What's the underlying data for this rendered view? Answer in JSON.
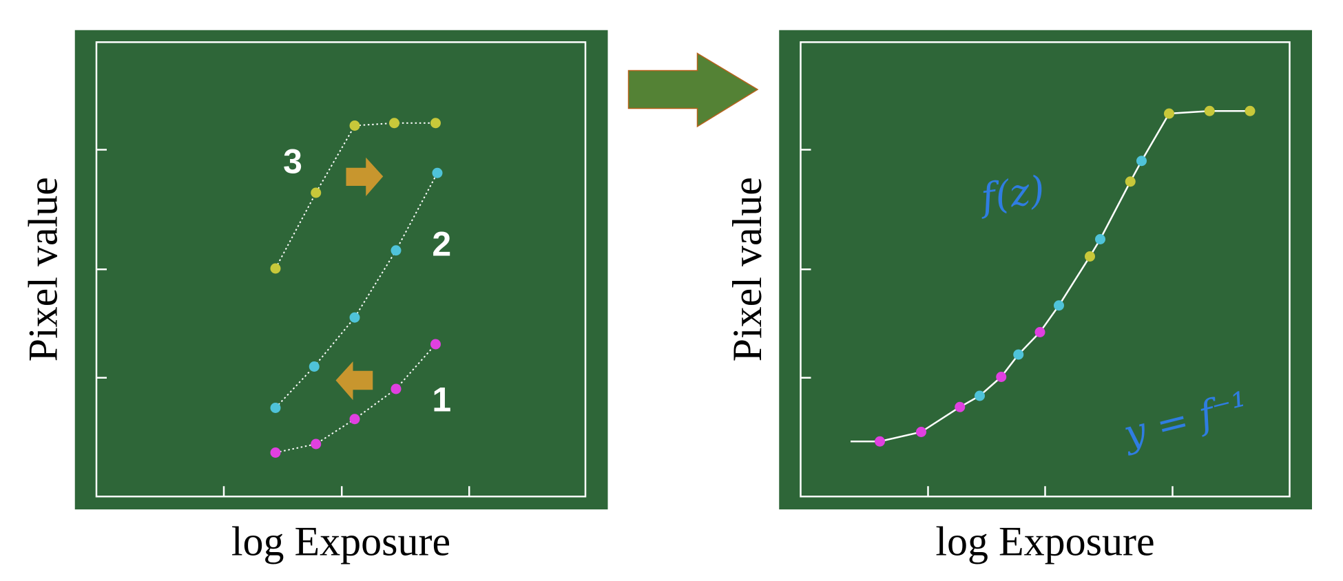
{
  "left_panel": {
    "y_label": "Pixel value",
    "x_label": "log Exposure",
    "curve_labels": [
      "3",
      "2",
      "1"
    ]
  },
  "right_panel": {
    "y_label": "Pixel value",
    "x_label": "log Exposure",
    "annotations": [
      "f(z)",
      "y = f⁻¹"
    ]
  }
}
